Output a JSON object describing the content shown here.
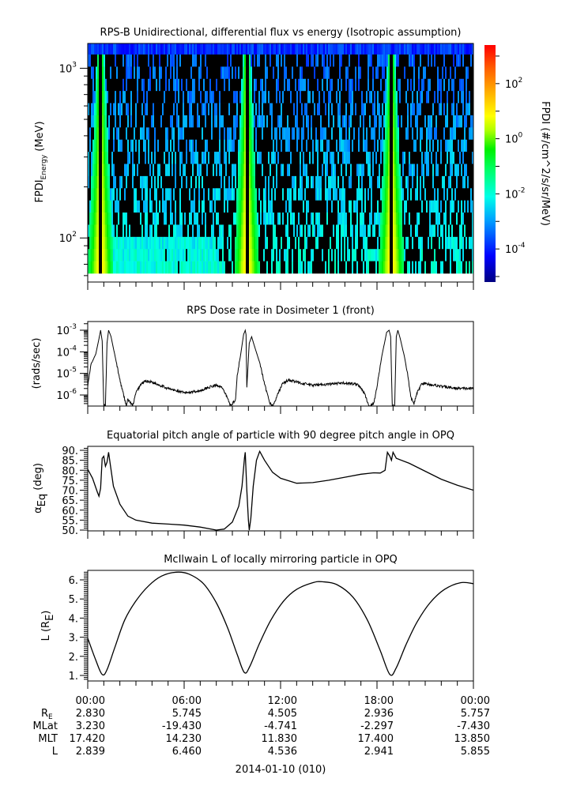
{
  "chart_data": [
    {
      "type": "heatmap",
      "title": "RPS-B  Unidirectional, differential flux vs energy (Isotropic assumption)",
      "ylabel_main": "FPDI",
      "ylabel_sub": "Energy",
      "ylabel_unit": " (MeV)",
      "yscale": "log",
      "ylim": [
        55,
        1400
      ],
      "y_ticks": [
        {
          "base": "10",
          "exp": "2",
          "value": 100
        },
        {
          "base": "10",
          "exp": "3",
          "value": 1000
        }
      ],
      "energy_bins": 18,
      "energy_range_mev": [
        60,
        1300
      ],
      "colorbar": {
        "label": "FPDI (#/cm^2/s/sr/MeV)",
        "scale": "log",
        "range_exp": [
          -5.2,
          3.4
        ],
        "ticks": [
          {
            "base": "10",
            "exp": "-4",
            "value": -4
          },
          {
            "base": "10",
            "exp": "-2",
            "value": -2
          },
          {
            "base": "10",
            "exp": "0",
            "value": 0
          },
          {
            "base": "10",
            "exp": "2",
            "value": 2
          }
        ]
      },
      "belt_passes_hours": [
        0.8,
        9.9,
        18.9
      ],
      "peak_flux_exp": 1.5,
      "background_flux_exp": -3.5,
      "fill_value": "black"
    },
    {
      "type": "line",
      "title": "RPS  Dose rate in Dosimeter 1 (front)",
      "ylabel": "(rads/sec)",
      "yscale": "log",
      "ylim_exp": [
        -6.4,
        -2.8
      ],
      "y_ticks": [
        {
          "base": "10",
          "exp": "-6",
          "value": -6
        },
        {
          "base": "10",
          "exp": "-5",
          "value": -5
        },
        {
          "base": "10",
          "exp": "-4",
          "value": -4
        },
        {
          "base": "10",
          "exp": "-3",
          "value": -3
        }
      ],
      "series": [
        {
          "name": "dose_rate_log10",
          "points": [
            [
              0,
              -5.6
            ],
            [
              0.2,
              -4.6
            ],
            [
              0.5,
              -4.1
            ],
            [
              0.7,
              -3.4
            ],
            [
              0.8,
              -3.0
            ],
            [
              0.9,
              -3.5
            ],
            [
              1.0,
              -6.5
            ],
            [
              1.1,
              -6.5
            ],
            [
              1.2,
              -3.6
            ],
            [
              1.3,
              -3.0
            ],
            [
              1.45,
              -3.3
            ],
            [
              1.7,
              -4.2
            ],
            [
              2.0,
              -5.3
            ],
            [
              2.3,
              -6.2
            ],
            [
              2.4,
              -6.5
            ],
            [
              2.5,
              -6.2
            ],
            [
              2.8,
              -6.5
            ],
            [
              3.0,
              -5.9
            ],
            [
              3.3,
              -5.5
            ],
            [
              3.6,
              -5.35
            ],
            [
              4.0,
              -5.4
            ],
            [
              5.0,
              -5.7
            ],
            [
              6.0,
              -5.9
            ],
            [
              7.0,
              -5.8
            ],
            [
              7.5,
              -5.65
            ],
            [
              8.0,
              -5.55
            ],
            [
              8.3,
              -5.6
            ],
            [
              8.6,
              -6.0
            ],
            [
              8.9,
              -6.5
            ],
            [
              9.2,
              -6.2
            ],
            [
              9.3,
              -5.1
            ],
            [
              9.5,
              -4.2
            ],
            [
              9.7,
              -3.2
            ],
            [
              9.8,
              -3.0
            ],
            [
              9.85,
              -3.2
            ],
            [
              9.9,
              -5.7
            ],
            [
              10.05,
              -3.6
            ],
            [
              10.2,
              -3.3
            ],
            [
              10.4,
              -3.8
            ],
            [
              10.7,
              -4.5
            ],
            [
              11.0,
              -5.5
            ],
            [
              11.3,
              -6.3
            ],
            [
              11.45,
              -6.5
            ],
            [
              11.6,
              -6.4
            ],
            [
              11.8,
              -6.0
            ],
            [
              12.1,
              -5.5
            ],
            [
              12.5,
              -5.3
            ],
            [
              13.0,
              -5.4
            ],
            [
              14.0,
              -5.55
            ],
            [
              15.0,
              -5.5
            ],
            [
              16.0,
              -5.45
            ],
            [
              16.8,
              -5.5
            ],
            [
              17.2,
              -5.9
            ],
            [
              17.5,
              -6.5
            ],
            [
              17.8,
              -6.4
            ],
            [
              18.0,
              -5.6
            ],
            [
              18.3,
              -4.2
            ],
            [
              18.6,
              -3.1
            ],
            [
              18.75,
              -3.0
            ],
            [
              18.85,
              -3.3
            ],
            [
              18.95,
              -6.5
            ],
            [
              19.1,
              -6.5
            ],
            [
              19.2,
              -3.3
            ],
            [
              19.3,
              -3.0
            ],
            [
              19.45,
              -3.4
            ],
            [
              19.7,
              -4.2
            ],
            [
              19.9,
              -5.0
            ],
            [
              20.1,
              -6.1
            ],
            [
              20.3,
              -6.4
            ],
            [
              20.5,
              -5.9
            ],
            [
              20.8,
              -5.45
            ],
            [
              21.2,
              -5.5
            ],
            [
              22.0,
              -5.6
            ],
            [
              23.0,
              -5.7
            ],
            [
              24.0,
              -5.7
            ]
          ]
        }
      ]
    },
    {
      "type": "line",
      "title": "Equatorial pitch angle of particle with 90 degree pitch angle in OPQ",
      "ylabel_main": "α",
      "ylabel_sub": "Eq",
      "ylabel_unit": " (deg)",
      "ylim": [
        49.5,
        92
      ],
      "y_ticks": [
        "50.",
        "55.",
        "60.",
        "65.",
        "70.",
        "75.",
        "80.",
        "85.",
        "90."
      ],
      "series": [
        {
          "name": "alpha_eq",
          "points": [
            [
              0,
              80.5
            ],
            [
              0.3,
              76
            ],
            [
              0.6,
              69
            ],
            [
              0.7,
              67
            ],
            [
              0.8,
              71
            ],
            [
              0.9,
              86
            ],
            [
              1.0,
              87
            ],
            [
              1.1,
              82
            ],
            [
              1.2,
              84
            ],
            [
              1.3,
              89
            ],
            [
              1.4,
              83
            ],
            [
              1.6,
              72
            ],
            [
              2.0,
              63
            ],
            [
              2.5,
              57
            ],
            [
              3.0,
              55
            ],
            [
              4.0,
              53.5
            ],
            [
              5.0,
              53
            ],
            [
              6.0,
              52.5
            ],
            [
              7.0,
              51.5
            ],
            [
              8.0,
              50
            ],
            [
              8.5,
              50.5
            ],
            [
              9.0,
              54
            ],
            [
              9.4,
              62
            ],
            [
              9.6,
              72
            ],
            [
              9.75,
              86
            ],
            [
              9.8,
              89
            ],
            [
              9.9,
              70
            ],
            [
              10.0,
              55
            ],
            [
              10.05,
              50
            ],
            [
              10.15,
              56
            ],
            [
              10.3,
              72
            ],
            [
              10.5,
              85
            ],
            [
              10.7,
              89.5
            ],
            [
              11.0,
              85
            ],
            [
              11.5,
              79
            ],
            [
              12.0,
              76
            ],
            [
              13.0,
              73.5
            ],
            [
              14.0,
              73.8
            ],
            [
              15.0,
              75
            ],
            [
              16.0,
              76.5
            ],
            [
              17.0,
              78
            ],
            [
              17.8,
              78.7
            ],
            [
              18.2,
              78.6
            ],
            [
              18.5,
              80
            ],
            [
              18.65,
              89
            ],
            [
              18.8,
              87
            ],
            [
              18.9,
              85
            ],
            [
              19.0,
              89
            ],
            [
              19.2,
              86
            ],
            [
              20.0,
              83.5
            ],
            [
              21.0,
              79.5
            ],
            [
              22.0,
              75.5
            ],
            [
              23.0,
              72.5
            ],
            [
              24.0,
              70
            ]
          ]
        }
      ]
    },
    {
      "type": "line",
      "title": "McIlwain L of locally mirroring particle in OPQ",
      "ylabel_main": "L (R",
      "ylabel_sub": "E",
      "ylabel_unit": ")",
      "ylim": [
        0.7,
        6.6
      ],
      "y_ticks": [
        "1.",
        "2.",
        "3.",
        "4.",
        "5.",
        "6."
      ],
      "series": [
        {
          "name": "L",
          "points": [
            [
              0,
              2.95
            ],
            [
              0.5,
              1.8
            ],
            [
              0.9,
              1.05
            ],
            [
              1.2,
              1.3
            ],
            [
              1.7,
              2.5
            ],
            [
              2.3,
              3.9
            ],
            [
              3.0,
              4.9
            ],
            [
              3.8,
              5.7
            ],
            [
              4.6,
              6.2
            ],
            [
              5.5,
              6.4
            ],
            [
              6.3,
              6.3
            ],
            [
              7.2,
              5.8
            ],
            [
              8.0,
              4.8
            ],
            [
              8.7,
              3.5
            ],
            [
              9.3,
              2.1
            ],
            [
              9.75,
              1.15
            ],
            [
              10.1,
              1.5
            ],
            [
              10.7,
              2.7
            ],
            [
              11.4,
              3.9
            ],
            [
              12.2,
              4.9
            ],
            [
              13.0,
              5.5
            ],
            [
              14.0,
              5.85
            ],
            [
              14.6,
              5.9
            ],
            [
              15.5,
              5.75
            ],
            [
              16.5,
              5.1
            ],
            [
              17.4,
              3.9
            ],
            [
              18.2,
              2.3
            ],
            [
              18.8,
              1.05
            ],
            [
              19.2,
              1.4
            ],
            [
              19.8,
              2.6
            ],
            [
              20.5,
              3.8
            ],
            [
              21.3,
              4.8
            ],
            [
              22.2,
              5.5
            ],
            [
              23.2,
              5.85
            ],
            [
              24.0,
              5.8
            ]
          ]
        }
      ]
    }
  ],
  "x_axis": {
    "range_hours": [
      0,
      24
    ],
    "major_tick_hours": [
      0,
      6,
      12,
      18,
      24
    ],
    "minor_tick_step_hours": 1,
    "date_label": "2014-01-10 (010)"
  },
  "ephemeris": {
    "row_labels": [
      {
        "main": "R",
        "sub": "E"
      },
      {
        "main": "MLat",
        "sub": ""
      },
      {
        "main": "MLT",
        "sub": ""
      },
      {
        "main": "L",
        "sub": ""
      }
    ],
    "columns": [
      {
        "time": "00:00",
        "values": [
          "2.830",
          "3.230",
          "17.420",
          "2.839"
        ]
      },
      {
        "time": "06:00",
        "values": [
          "5.745",
          "-19.430",
          "14.230",
          "6.460"
        ]
      },
      {
        "time": "12:00",
        "values": [
          "4.505",
          "-4.741",
          "11.830",
          "4.536"
        ]
      },
      {
        "time": "18:00",
        "values": [
          "2.936",
          "-2.297",
          "17.400",
          "2.941"
        ]
      },
      {
        "time": "00:00",
        "values": [
          "5.757",
          "-7.430",
          "13.850",
          "5.855"
        ]
      }
    ]
  }
}
